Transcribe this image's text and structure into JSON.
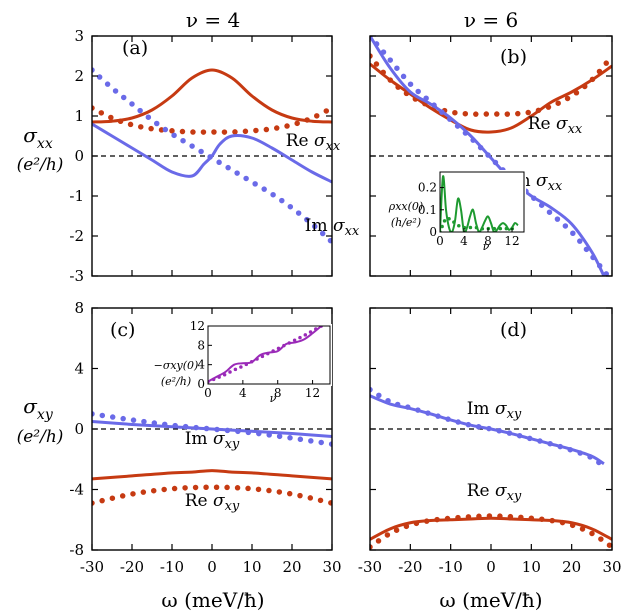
{
  "column_titles": [
    "ν = 4",
    "ν = 6"
  ],
  "row_labels": [
    {
      "main": "σ",
      "sub": "xx",
      "unit": "(e²/h)"
    },
    {
      "main": "σ",
      "sub": "xy",
      "unit": "(e²/h)"
    }
  ],
  "xlabel": "ω (meV/ħ)",
  "colors": {
    "re": "#c63a12",
    "im": "#6a6ae8",
    "inset_xx": "#1e9a30",
    "inset_xy": "#9a2ab8",
    "dash": "#000000"
  },
  "chart_data": [
    {
      "type": "line",
      "panel": "(a)",
      "xlim": [
        -30,
        30
      ],
      "ylim": [
        -3,
        3
      ],
      "xticks": [
        -30,
        -20,
        -10,
        0,
        10,
        20,
        30
      ],
      "yticks": [
        -3,
        -2,
        -1,
        0,
        1,
        2,
        3
      ],
      "annotations": [
        {
          "text": "Re σxx"
        },
        {
          "text": "Im σxx"
        }
      ],
      "series": [
        {
          "style": "solid",
          "color": "re",
          "x": [
            -30,
            -25,
            -20,
            -15,
            -10,
            -5,
            0,
            5,
            10,
            15,
            20,
            25,
            30
          ],
          "y": [
            0.85,
            0.87,
            0.95,
            1.15,
            1.5,
            1.95,
            2.15,
            1.95,
            1.5,
            1.15,
            0.95,
            0.87,
            0.85
          ]
        },
        {
          "style": "dotted",
          "color": "re",
          "x": [
            -30,
            -25,
            -20,
            -15,
            -10,
            -5,
            0,
            5,
            10,
            15,
            20,
            25,
            30
          ],
          "y": [
            1.2,
            0.95,
            0.78,
            0.68,
            0.63,
            0.6,
            0.6,
            0.6,
            0.63,
            0.68,
            0.78,
            0.95,
            1.2
          ]
        },
        {
          "style": "solid",
          "color": "im",
          "x": [
            -30,
            -25,
            -20,
            -15,
            -10,
            -5,
            -2,
            0,
            2,
            5,
            10,
            15,
            20,
            25,
            30
          ],
          "y": [
            0.8,
            0.5,
            0.2,
            -0.1,
            -0.4,
            -0.5,
            -0.2,
            0.0,
            0.3,
            0.5,
            0.45,
            0.2,
            -0.1,
            -0.4,
            -0.65
          ]
        },
        {
          "style": "dotted",
          "color": "im",
          "x": [
            -30,
            -25,
            -20,
            -15,
            -10,
            -5,
            0,
            5,
            10,
            15,
            20,
            25,
            30
          ],
          "y": [
            2.15,
            1.7,
            1.3,
            0.9,
            0.55,
            0.25,
            -0.05,
            -0.35,
            -0.65,
            -0.95,
            -1.3,
            -1.7,
            -2.15
          ]
        }
      ]
    },
    {
      "type": "line",
      "panel": "(b)",
      "xlim": [
        -30,
        30
      ],
      "ylim": [
        -3,
        3
      ],
      "xticks": [
        -30,
        -20,
        -10,
        0,
        10,
        20,
        30
      ],
      "yticks": [
        -3,
        -2,
        -1,
        0,
        1,
        2,
        3
      ],
      "annotations": [
        {
          "text": "Re σxx"
        },
        {
          "text": "Im σxx"
        }
      ],
      "series": [
        {
          "style": "solid",
          "color": "re",
          "x": [
            -30,
            -25,
            -20,
            -15,
            -10,
            -5,
            0,
            5,
            10,
            15,
            20,
            25,
            30
          ],
          "y": [
            2.3,
            1.9,
            1.55,
            1.2,
            0.9,
            0.65,
            0.6,
            0.7,
            1.0,
            1.35,
            1.6,
            1.9,
            2.25
          ]
        },
        {
          "style": "dotted",
          "color": "re",
          "x": [
            -30,
            -25,
            -20,
            -15,
            -10,
            -5,
            0,
            5,
            10,
            15,
            20,
            25,
            30
          ],
          "y": [
            2.5,
            1.9,
            1.5,
            1.25,
            1.1,
            1.05,
            1.05,
            1.05,
            1.1,
            1.25,
            1.5,
            1.9,
            2.5
          ]
        },
        {
          "style": "solid",
          "color": "im",
          "x": [
            -30,
            -25,
            -20,
            -15,
            -10,
            -5,
            0,
            5,
            10,
            15,
            20,
            25,
            28
          ],
          "y": [
            3.0,
            2.2,
            1.6,
            1.3,
            0.95,
            0.5,
            -0.05,
            -0.6,
            -1.0,
            -1.3,
            -1.7,
            -2.4,
            -3.0
          ]
        },
        {
          "style": "dotted",
          "color": "im",
          "x": [
            -30,
            -25,
            -20,
            -15,
            -10,
            -5,
            0,
            5,
            10,
            15,
            20,
            25,
            29
          ],
          "y": [
            3.0,
            2.4,
            1.8,
            1.35,
            0.9,
            0.45,
            -0.05,
            -0.55,
            -1.0,
            -1.45,
            -1.9,
            -2.5,
            -3.0
          ]
        }
      ]
    },
    {
      "type": "line",
      "panel": "(c)",
      "xlim": [
        -30,
        30
      ],
      "ylim": [
        -8,
        8
      ],
      "xticks": [
        -30,
        -20,
        -10,
        0,
        10,
        20,
        30
      ],
      "yticks": [
        -8,
        -4,
        0,
        4,
        8
      ],
      "annotations": [
        {
          "text": "Im σxy"
        },
        {
          "text": "Re σxy"
        }
      ],
      "series": [
        {
          "style": "solid",
          "color": "im",
          "x": [
            -30,
            -20,
            -10,
            0,
            10,
            20,
            30
          ],
          "y": [
            0.5,
            0.3,
            0.15,
            0.0,
            -0.15,
            -0.3,
            -0.5
          ]
        },
        {
          "style": "dotted",
          "color": "im",
          "x": [
            -30,
            -20,
            -10,
            0,
            10,
            20,
            30
          ],
          "y": [
            1.0,
            0.6,
            0.25,
            0.0,
            -0.25,
            -0.6,
            -1.0
          ]
        },
        {
          "style": "solid",
          "color": "re",
          "x": [
            -30,
            -20,
            -10,
            -5,
            0,
            5,
            10,
            20,
            30
          ],
          "y": [
            -3.3,
            -3.1,
            -2.9,
            -2.85,
            -2.75,
            -2.85,
            -2.9,
            -3.1,
            -3.3
          ]
        },
        {
          "style": "dotted",
          "color": "re",
          "x": [
            -30,
            -20,
            -10,
            0,
            10,
            20,
            30
          ],
          "y": [
            -4.9,
            -4.3,
            -3.95,
            -3.85,
            -3.95,
            -4.3,
            -4.9
          ]
        }
      ]
    },
    {
      "type": "line",
      "panel": "(d)",
      "xlim": [
        -30,
        30
      ],
      "ylim": [
        -8,
        8
      ],
      "xticks": [
        -30,
        -20,
        -10,
        0,
        10,
        20,
        30
      ],
      "yticks": [
        -8,
        -4,
        0,
        4,
        8
      ],
      "annotations": [
        {
          "text": "Im σxy"
        },
        {
          "text": "Re σxy"
        }
      ],
      "series": [
        {
          "style": "solid",
          "color": "im",
          "x": [
            -30,
            -25,
            -20,
            -15,
            -10,
            -5,
            0,
            5,
            10,
            15,
            20,
            25,
            28
          ],
          "y": [
            2.2,
            1.65,
            1.35,
            1.0,
            0.6,
            0.25,
            0.0,
            -0.3,
            -0.65,
            -1.0,
            -1.35,
            -1.8,
            -2.3
          ]
        },
        {
          "style": "dotted",
          "color": "im",
          "x": [
            -30,
            -25,
            -20,
            -15,
            -10,
            -5,
            0,
            5,
            10,
            15,
            20,
            25,
            28
          ],
          "y": [
            2.6,
            1.8,
            1.4,
            1.0,
            0.6,
            0.25,
            0.0,
            -0.3,
            -0.65,
            -1.0,
            -1.4,
            -1.9,
            -2.5
          ]
        },
        {
          "style": "solid",
          "color": "re",
          "x": [
            -30,
            -25,
            -20,
            -15,
            -10,
            -5,
            0,
            5,
            10,
            15,
            20,
            25,
            30
          ],
          "y": [
            -7.3,
            -6.6,
            -6.2,
            -6.05,
            -6.0,
            -5.95,
            -5.9,
            -5.95,
            -6.0,
            -6.05,
            -6.2,
            -6.6,
            -7.3
          ]
        },
        {
          "style": "dotted",
          "color": "re",
          "x": [
            -30,
            -25,
            -20,
            -15,
            -10,
            -5,
            0,
            5,
            10,
            15,
            20,
            25,
            30
          ],
          "y": [
            -7.8,
            -6.9,
            -6.35,
            -6.05,
            -5.9,
            -5.8,
            -5.75,
            -5.8,
            -5.9,
            -6.05,
            -6.35,
            -6.9,
            -7.8
          ]
        }
      ]
    },
    {
      "type": "line",
      "panel": "inset-b",
      "xlim": [
        0,
        14
      ],
      "ylim": [
        0,
        0.27
      ],
      "xticks": [
        0,
        4,
        8,
        12
      ],
      "yticks": [
        0,
        0.1,
        0.2
      ],
      "xticklabels": [
        "0",
        "4",
        "8",
        "12"
      ],
      "yticklabels": [
        "0",
        "0.1",
        "0.2"
      ],
      "xlabel": "ν",
      "ylabel_lines": [
        "ρxx(0)",
        "(h/e²)"
      ],
      "series": [
        {
          "style": "solid",
          "color": "inset_xx",
          "x": [
            0,
            0.5,
            1,
            1.5,
            2,
            2.5,
            3,
            3.5,
            4,
            4.5,
            5,
            5.5,
            6,
            6.5,
            7,
            7.5,
            8,
            8.5,
            9,
            9.5,
            10,
            10.5,
            11,
            11.5,
            12,
            12.5,
            13
          ],
          "y": [
            0.0,
            0.25,
            0.1,
            0.02,
            0.0,
            0.05,
            0.15,
            0.1,
            0.0,
            0.02,
            0.07,
            0.1,
            0.04,
            0.0,
            0.02,
            0.05,
            0.07,
            0.04,
            0.0,
            0.01,
            0.03,
            0.04,
            0.03,
            0.01,
            0.02,
            0.04,
            0.03
          ]
        },
        {
          "style": "dotted",
          "color": "inset_xx",
          "x": [
            0,
            1,
            2,
            3,
            4,
            5,
            6,
            7,
            8,
            9,
            10,
            11,
            12,
            13
          ],
          "y": [
            0.0,
            0.06,
            0.05,
            0.03,
            0.02,
            0.02,
            0.02,
            0.015,
            0.015,
            0.015,
            0.015,
            0.015,
            0.015,
            0.015
          ]
        }
      ]
    },
    {
      "type": "line",
      "panel": "inset-c",
      "xlim": [
        0,
        14
      ],
      "ylim": [
        0,
        12
      ],
      "xticks": [
        0,
        4,
        8,
        12
      ],
      "yticks": [
        0,
        4,
        8,
        12
      ],
      "xticklabels": [
        "0",
        "4",
        "8",
        "12"
      ],
      "yticklabels": [
        "0",
        "4",
        "8",
        "12"
      ],
      "xlabel": "ν",
      "ylabel_lines": [
        "−σxy(0)",
        "(e²/h)"
      ],
      "series": [
        {
          "style": "solid",
          "color": "inset_xy",
          "x": [
            0,
            1,
            2,
            3,
            4,
            5,
            6,
            7,
            8,
            9,
            10,
            11,
            12,
            13
          ],
          "y": [
            0.5,
            1.5,
            2.5,
            4.0,
            4.3,
            4.5,
            6.0,
            6.5,
            6.8,
            8.3,
            8.6,
            9.2,
            10.5,
            12.0
          ]
        },
        {
          "style": "dotted",
          "color": "inset_xy",
          "x": [
            0,
            1,
            2,
            3,
            4,
            5,
            6,
            7,
            8,
            9,
            10,
            11,
            12,
            13
          ],
          "y": [
            0.5,
            1.2,
            2.0,
            2.9,
            3.7,
            4.6,
            5.5,
            6.4,
            7.3,
            8.2,
            9.1,
            10.0,
            11.0,
            12.0
          ]
        }
      ]
    }
  ]
}
